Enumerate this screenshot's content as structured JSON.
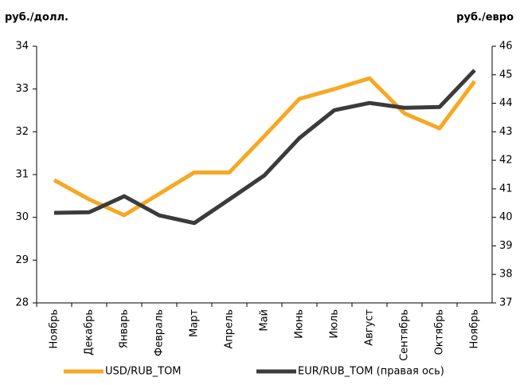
{
  "chart_data": {
    "type": "line",
    "y_label": "руб./долл.",
    "y2_label": "руб./евро",
    "categories": [
      "Ноябрь",
      "Декабрь",
      "Январь",
      "Февраль",
      "Март",
      "Апрель",
      "Май",
      "Июнь",
      "Июль",
      "Август",
      "Сентябрь",
      "Октябрь",
      "Ноябрь"
    ],
    "series": [
      {
        "name": "USD/RUB_TOM",
        "color": "#f7a823",
        "values": [
          30.87,
          30.42,
          30.05,
          30.55,
          31.05,
          31.05,
          31.9,
          32.77,
          33.0,
          33.25,
          32.43,
          32.08,
          33.18
        ]
      },
      {
        "name": "EUR/RUB_TOM (правая ось)",
        "color": "#3b3b3b",
        "axis": "y2",
        "values": [
          40.16,
          40.18,
          40.74,
          40.07,
          39.8,
          40.63,
          41.47,
          42.78,
          43.76,
          44.01,
          43.84,
          43.87,
          45.16
        ]
      }
    ],
    "ylim": [
      28,
      34
    ],
    "yticks": [
      28,
      29,
      30,
      31,
      32,
      33,
      34
    ],
    "y2lim": [
      37,
      46
    ],
    "y2ticks": [
      37,
      38,
      39,
      40,
      41,
      42,
      43,
      44,
      45,
      46
    ],
    "legend": "bottom"
  }
}
